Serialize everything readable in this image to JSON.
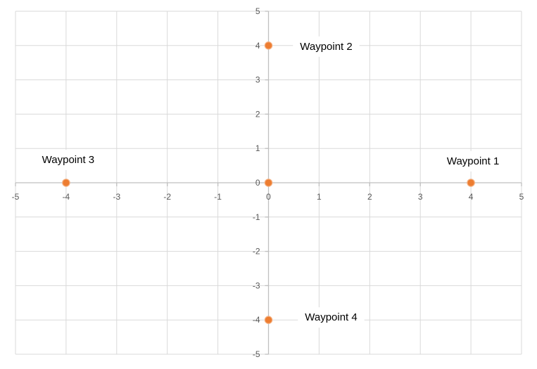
{
  "chart_data": {
    "type": "scatter",
    "title": "",
    "xlabel": "",
    "ylabel": "",
    "xlim": [
      -5,
      5
    ],
    "ylim": [
      -5,
      5
    ],
    "x_ticks": [
      "-5",
      "-4",
      "-3",
      "-2",
      "-1",
      "0",
      "1",
      "2",
      "3",
      "4",
      "5"
    ],
    "y_ticks": [
      "5",
      "4",
      "3",
      "2",
      "1",
      "0",
      "-1",
      "-2",
      "-3",
      "-4",
      "-5"
    ],
    "grid": true,
    "series": [
      {
        "points": [
          {
            "x": 0,
            "y": 0,
            "label": ""
          },
          {
            "x": 4,
            "y": 0,
            "label": "Waypoint 1"
          },
          {
            "x": 0,
            "y": 4,
            "label": "Waypoint 2"
          },
          {
            "x": -4,
            "y": 0,
            "label": "Waypoint 3"
          },
          {
            "x": 0,
            "y": -4,
            "label": "Waypoint 4"
          }
        ],
        "color": "#ED7D31",
        "marker_outline": "#F4B183"
      }
    ]
  }
}
